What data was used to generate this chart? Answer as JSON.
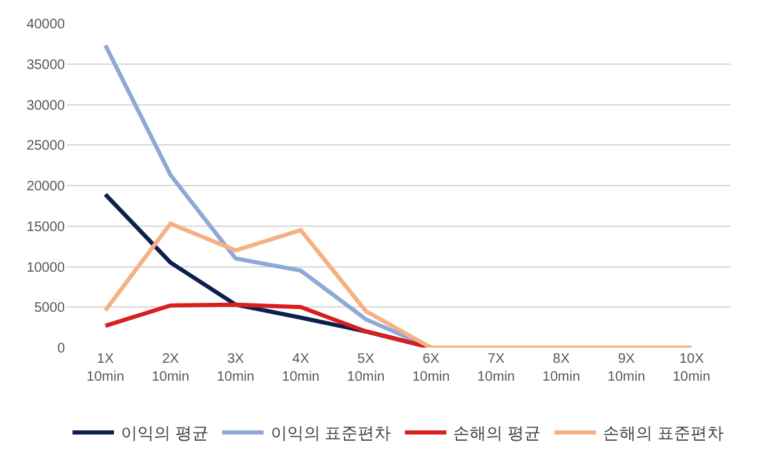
{
  "chart_data": {
    "type": "line",
    "categories": [
      "1X 10min",
      "2X 10min",
      "3X 10min",
      "4X 10min",
      "5X 10min",
      "6X 10min",
      "7X 10min",
      "8X 10min",
      "9X 10min",
      "10X 10min"
    ],
    "series": [
      {
        "name": "이익의 평균",
        "color": "#0e1f4d",
        "values": [
          18900,
          10500,
          5300,
          3700,
          2000,
          0,
          null,
          null,
          null,
          null
        ]
      },
      {
        "name": "이익의 표준편차",
        "color": "#8fa9d6",
        "values": [
          37300,
          21300,
          11000,
          9500,
          3500,
          0,
          null,
          null,
          null,
          null
        ]
      },
      {
        "name": "손해의 평균",
        "color": "#d91e1e",
        "values": [
          2700,
          5200,
          5300,
          5000,
          2000,
          0,
          null,
          null,
          null,
          null
        ]
      },
      {
        "name": "손해의 표준편차",
        "color": "#f4b183",
        "values": [
          4600,
          15300,
          12000,
          14500,
          4500,
          0,
          0,
          0,
          0,
          0
        ]
      }
    ],
    "ylim": [
      0,
      40000
    ],
    "yticks": [
      0,
      5000,
      10000,
      15000,
      20000,
      25000,
      30000,
      35000,
      40000
    ],
    "grid": "y",
    "legend": "bottom",
    "marker": "none",
    "line_style": "solid"
  }
}
